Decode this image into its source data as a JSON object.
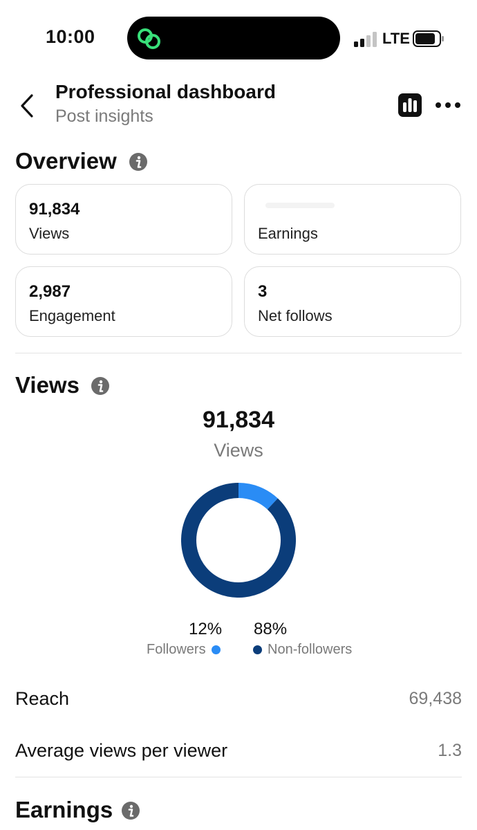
{
  "status_bar": {
    "time": "10:00",
    "network": "LTE"
  },
  "header": {
    "title": "Professional dashboard",
    "subtitle": "Post insights"
  },
  "overview": {
    "title": "Overview",
    "cards": [
      {
        "value": "91,834",
        "label": "Views"
      },
      {
        "value": "",
        "label": "Earnings"
      },
      {
        "value": "2,987",
        "label": "Engagement"
      },
      {
        "value": "3",
        "label": "Net follows"
      }
    ]
  },
  "views": {
    "title": "Views",
    "total": "91,834",
    "total_label": "Views",
    "followers_pct": "12%",
    "followers_label": "Followers",
    "nonfollowers_pct": "88%",
    "nonfollowers_label": "Non-followers",
    "colors": {
      "followers": "#2a8cf5",
      "nonfollowers": "#0b3d7a"
    }
  },
  "chart_data": {
    "type": "pie",
    "categories": [
      "Followers",
      "Non-followers"
    ],
    "values": [
      12,
      88
    ],
    "title": ""
  },
  "stats": [
    {
      "label": "Reach",
      "value": "69,438"
    },
    {
      "label": "Average views per viewer",
      "value": "1.3"
    }
  ],
  "earnings": {
    "title": "Earnings"
  }
}
